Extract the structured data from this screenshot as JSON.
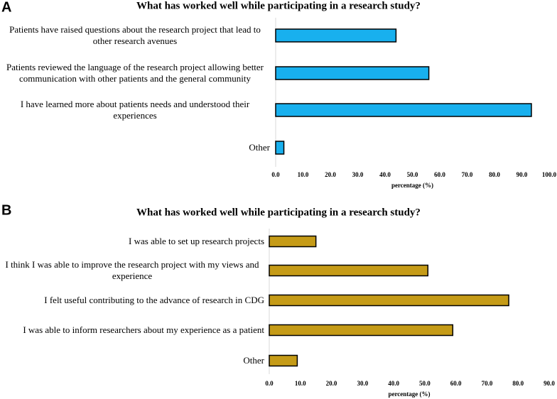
{
  "chart_data": [
    {
      "type": "bar",
      "orientation": "horizontal",
      "panel": "A",
      "title": "What has worked well while participating in a research study?",
      "categories": [
        "Patients have raised questions about the research project that lead to other research avenues",
        "Patients reviewed the language of the research project allowing better communication with other patients and the general community",
        "I have learned more about patients needs and understood their experiences",
        "Other"
      ],
      "values": [
        44,
        56,
        93.5,
        3
      ],
      "color": "#18b0ee",
      "xlabel": "percentage (%)",
      "xlim": [
        0,
        100
      ],
      "xticks": [
        {
          "value": 0,
          "label": "0.0"
        },
        {
          "value": 10,
          "label": "10.0"
        },
        {
          "value": 20,
          "label": "20.0"
        },
        {
          "value": 30,
          "label": "30.0"
        },
        {
          "value": 40,
          "label": "40.0"
        },
        {
          "value": 50,
          "label": "50.0"
        },
        {
          "value": 60,
          "label": "60.0"
        },
        {
          "value": 70,
          "label": "70.0"
        },
        {
          "value": 80,
          "label": "80.0"
        },
        {
          "value": 90,
          "label": "90.0"
        },
        {
          "value": 100,
          "label": "100.0"
        }
      ]
    },
    {
      "type": "bar",
      "orientation": "horizontal",
      "panel": "B",
      "title": "What has worked well while participating in a research study?",
      "categories": [
        "I was able to set up research projects",
        "I think I was able to improve the research project with my views and experience",
        "I felt useful contributing to the advance of research in CDG",
        "I was able to inform researchers about my experience as a patient",
        "Other"
      ],
      "values": [
        15,
        51,
        77,
        59,
        9
      ],
      "color": "#c59b17",
      "xlabel": "percentage (%)",
      "xlim": [
        0,
        90
      ],
      "xticks": [
        {
          "value": 0,
          "label": "0.0"
        },
        {
          "value": 10,
          "label": "10.0"
        },
        {
          "value": 20,
          "label": "20.0"
        },
        {
          "value": 30,
          "label": "30.0"
        },
        {
          "value": 40,
          "label": "40.0"
        },
        {
          "value": 50,
          "label": "50.0"
        },
        {
          "value": 60,
          "label": "60.0"
        },
        {
          "value": 70,
          "label": "70.0"
        },
        {
          "value": 80,
          "label": "80.0"
        },
        {
          "value": 90,
          "label": "90.0"
        }
      ]
    }
  ]
}
